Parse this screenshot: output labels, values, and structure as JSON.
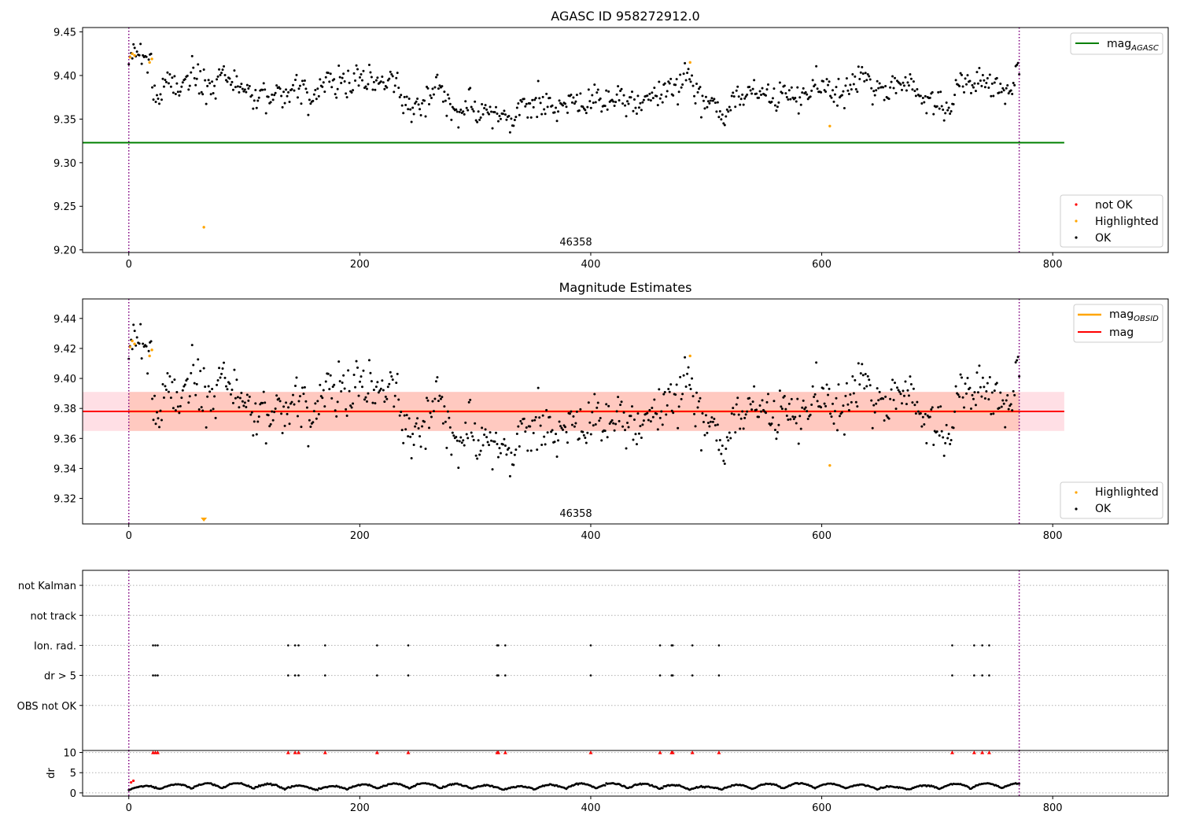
{
  "chart_data": [
    {
      "type": "scatter",
      "title": "AGASC ID 958272912.0",
      "xlim": [
        -40,
        900
      ],
      "ylim": [
        9.197,
        9.455
      ],
      "x_ticks": [
        0,
        200,
        400,
        600,
        800
      ],
      "y_ticks": [
        9.2,
        9.25,
        9.3,
        9.35,
        9.4,
        9.45
      ],
      "y_tick_labels": [
        "9.20",
        "9.25",
        "9.30",
        "9.35",
        "9.40",
        "9.45"
      ],
      "obsid_annotation": "46358",
      "obsid_boundaries": [
        0,
        771
      ],
      "lines": [
        {
          "name": "mag_AGASC",
          "y": 9.323,
          "x_range": [
            -40,
            810
          ],
          "color": "#008000"
        }
      ],
      "highlighted_points": [
        {
          "x": 1,
          "y": 9.421
        },
        {
          "x": 3,
          "y": 9.425
        },
        {
          "x": 5,
          "y": 9.423
        },
        {
          "x": 18,
          "y": 9.415
        },
        {
          "x": 20,
          "y": 9.419
        },
        {
          "x": 65,
          "y": 9.226
        },
        {
          "x": 486,
          "y": 9.415
        },
        {
          "x": 607,
          "y": 9.342
        }
      ],
      "ok_series": {
        "x_start": 0,
        "x_end": 771,
        "count": 760,
        "center": 9.377,
        "spread": 0.013
      },
      "legend": {
        "placement_lines": "upper right",
        "placement_points": "lower right",
        "line_entries": [
          {
            "label": "mag",
            "sub": "AGASC",
            "color": "#008000"
          }
        ],
        "point_entries": [
          {
            "label": "not OK",
            "color": "#ff0000"
          },
          {
            "label": "Highlighted",
            "color": "#ffa500"
          },
          {
            "label": "OK",
            "color": "#000000"
          }
        ]
      }
    },
    {
      "type": "scatter",
      "title": "Magnitude Estimates",
      "xlim": [
        -40,
        900
      ],
      "ylim": [
        9.303,
        9.453
      ],
      "x_ticks": [
        0,
        200,
        400,
        600,
        800
      ],
      "y_ticks": [
        9.32,
        9.34,
        9.36,
        9.38,
        9.4,
        9.42,
        9.44
      ],
      "y_tick_labels": [
        "9.32",
        "9.34",
        "9.36",
        "9.38",
        "9.40",
        "9.42",
        "9.44"
      ],
      "obsid_annotation": "46358",
      "obsid_boundaries": [
        0,
        771
      ],
      "mag": {
        "name": "mag",
        "y": 9.378,
        "band": [
          9.365,
          9.391
        ],
        "x_range": [
          -40,
          810
        ],
        "color": "#ff0000"
      },
      "mag_obsid": {
        "name": "mag_OBSID",
        "y": 9.378,
        "band": [
          9.365,
          9.391
        ],
        "x_range": [
          0,
          771
        ],
        "color": "#ffa500"
      },
      "highlighted_points": [
        {
          "x": 1,
          "y": 9.421
        },
        {
          "x": 3,
          "y": 9.425
        },
        {
          "x": 5,
          "y": 9.423
        },
        {
          "x": 18,
          "y": 9.415
        },
        {
          "x": 20,
          "y": 9.419
        },
        {
          "x": 486,
          "y": 9.415
        },
        {
          "x": 607,
          "y": 9.342
        }
      ],
      "offscale_marker": {
        "x": 65,
        "direction": "below"
      },
      "ok_series": {
        "x_start": 0,
        "x_end": 771,
        "count": 760,
        "center": 9.377,
        "spread": 0.013
      },
      "legend": {
        "placement_lines": "upper right",
        "placement_points": "lower right",
        "line_entries": [
          {
            "label": "mag",
            "sub": "OBSID",
            "color": "#ffa500"
          },
          {
            "label": "mag",
            "sub": "",
            "color": "#ff0000"
          }
        ],
        "point_entries": [
          {
            "label": "Highlighted",
            "color": "#ffa500"
          },
          {
            "label": "OK",
            "color": "#000000"
          }
        ]
      }
    },
    {
      "type": "scatter",
      "title": "",
      "xlim": [
        -40,
        900
      ],
      "ylim": [
        -0.5,
        5.5
      ],
      "x_ticks": [
        0,
        200,
        400,
        600,
        800
      ],
      "categories": [
        "not Kalman",
        "not track",
        "Ion. rad.",
        "dr > 5",
        "OBS not OK"
      ],
      "category_values": [
        5,
        4,
        3,
        2,
        1
      ],
      "flag_points_x": [
        21,
        23,
        25,
        138,
        144,
        147,
        170,
        215,
        242,
        319,
        320,
        326,
        400,
        460,
        470,
        471,
        488,
        511,
        713,
        732,
        739,
        745
      ],
      "obsid_boundaries": [
        0,
        771
      ]
    },
    {
      "type": "scatter",
      "title": "",
      "ylabel": "dr",
      "xlim": [
        -40,
        900
      ],
      "ylim": [
        -0.8,
        10.5
      ],
      "x_ticks": [
        0,
        200,
        400,
        600,
        800
      ],
      "x_tick_labels": [
        "0",
        "200",
        "400",
        "600",
        "800"
      ],
      "y_ticks": [
        0,
        5,
        10
      ],
      "y_tick_labels": [
        "0",
        "5",
        "10"
      ],
      "clipped_points_x": [
        21,
        23,
        25,
        138,
        144,
        147,
        170,
        215,
        242,
        319,
        320,
        326,
        400,
        460,
        470,
        471,
        488,
        511,
        713,
        732,
        739,
        745
      ],
      "clipped_value": 10,
      "not_ok_points": [
        {
          "x": 2,
          "y": 2.6
        },
        {
          "x": 4,
          "y": 3.0
        }
      ],
      "ok_series": {
        "x_start": 0,
        "x_end": 771,
        "count": 760,
        "min": 0.1,
        "max": 2.4
      },
      "obsid_boundaries": [
        0,
        771
      ]
    }
  ],
  "colors": {
    "ok": "#000000",
    "highlighted": "#ffa500",
    "not_ok": "#ff0000",
    "agasc_line": "#008000",
    "obsid_boundary": "#800080",
    "mag_band": "#ffc0cb",
    "mag_obsid_band": "#ffa07a",
    "grid": "#b0b0b0"
  }
}
